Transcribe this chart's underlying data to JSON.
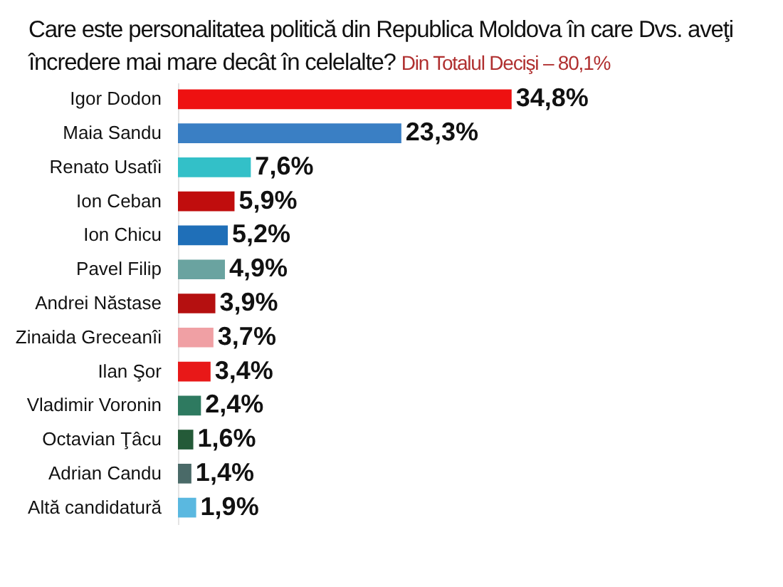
{
  "chart_data": {
    "type": "bar",
    "orientation": "horizontal",
    "title": "Care este personalitatea politică din Republica Moldova în care Dvs. aveţi încredere mai mare decât în celelalte?",
    "subtitle": "Din Totalul Decişi – 80,1%",
    "categories": [
      "Igor Dodon",
      "Maia Sandu",
      "Renato Usatîi",
      "Ion Ceban",
      "Ion Chicu",
      "Pavel Filip",
      "Andrei Năstase",
      "Zinaida Greceanîi",
      "Ilan Şor",
      "Vladimir Voronin",
      "Octavian Ţâcu",
      "Adrian Candu",
      "Altă candidatură"
    ],
    "values": [
      34.8,
      23.3,
      7.6,
      5.9,
      5.2,
      4.9,
      3.9,
      3.7,
      3.4,
      2.4,
      1.6,
      1.4,
      1.9
    ],
    "colors": [
      "#ee1111",
      "#3a7fc4",
      "#33c0c8",
      "#c00d0d",
      "#1f6fb8",
      "#6aa3a0",
      "#b51010",
      "#f0a0a4",
      "#e81818",
      "#2e7a60",
      "#245a38",
      "#4a6a68",
      "#5ab8e0"
    ],
    "value_labels": [
      "34,8%",
      "23,3%",
      "7,6%",
      "5,9%",
      "5,2%",
      "4,9%",
      "3,9%",
      "3,7%",
      "3,4%",
      "2,4%",
      "1,6%",
      "1,4%",
      "1,9%"
    ],
    "grid": false,
    "legend": false
  }
}
